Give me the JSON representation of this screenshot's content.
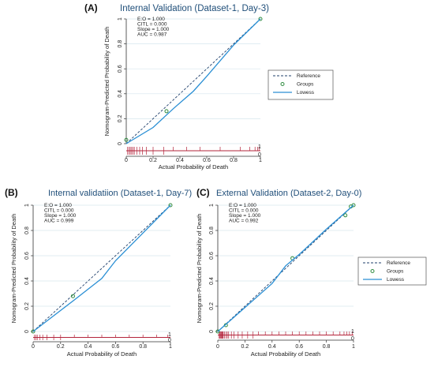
{
  "chart_data": [
    {
      "type": "line",
      "panel_label": "(A)",
      "title": "Internal Validation (Dataset-1, Day-3)",
      "xlabel": "Actual Probability of Death",
      "ylabel": "Nomogram-Predicted Probability of Death",
      "xlim": [
        0,
        1
      ],
      "ylim": [
        0,
        1
      ],
      "x_ticks": [
        "0",
        "0.2",
        "0.4",
        "0.6",
        "0.8",
        "1"
      ],
      "y_ticks": [
        "0",
        "0.2",
        "0.4",
        "0.6",
        "0.8",
        "1"
      ],
      "stats": [
        "E:O = 1.000",
        "CITL = 0.000",
        "Slope = 1.000",
        "AUC = 0.987"
      ],
      "legend": {
        "position": "right",
        "entries": [
          "Reference",
          "Groups",
          "Lowess"
        ]
      },
      "series": [
        {
          "name": "Reference",
          "style": "dashed",
          "points": [
            [
              0,
              0
            ],
            [
              1,
              1
            ]
          ]
        },
        {
          "name": "Groups",
          "style": "markers",
          "points": [
            [
              0,
              0.03
            ],
            [
              0.3,
              0.26
            ],
            [
              1,
              1
            ]
          ]
        },
        {
          "name": "Lowess",
          "style": "solid",
          "points": [
            [
              0,
              0
            ],
            [
              0.2,
              0.13
            ],
            [
              0.35,
              0.28
            ],
            [
              0.5,
              0.42
            ],
            [
              0.6,
              0.54
            ],
            [
              0.8,
              0.79
            ],
            [
              1,
              1
            ]
          ]
        }
      ],
      "rug_ticks": [
        0.01,
        0.02,
        0.03,
        0.04,
        0.05,
        0.06,
        0.08,
        0.1,
        0.12,
        0.15,
        0.2,
        0.28,
        0.35,
        0.45,
        0.55,
        0.7,
        0.85,
        0.92,
        0.96,
        0.98,
        0.99
      ],
      "rug_zero_label": "0",
      "rug_one_label": "1"
    },
    {
      "type": "line",
      "panel_label": "(B)",
      "title": "Internal validatiion (Dataset-1, Day-7)",
      "xlabel": "Actual Probability of Death",
      "ylabel": "Nomogram-Predicted Probability of Death",
      "xlim": [
        0,
        1
      ],
      "ylim": [
        0,
        1
      ],
      "x_ticks": [
        "0",
        "0.2",
        "0.4",
        "0.6",
        "0.8",
        "1"
      ],
      "y_ticks": [
        "0",
        "0.2",
        "0.4",
        "0.6",
        "0.8",
        "1"
      ],
      "stats": [
        "E:O = 1.000",
        "CITL = 0.000",
        "Slope = 1.000",
        "AUC = 0.999"
      ],
      "legend": null,
      "series": [
        {
          "name": "Reference",
          "style": "dashed",
          "points": [
            [
              0,
              0
            ],
            [
              1,
              1
            ]
          ]
        },
        {
          "name": "Groups",
          "style": "markers",
          "points": [
            [
              0,
              0
            ],
            [
              0.29,
              0.28
            ],
            [
              1,
              1
            ]
          ]
        },
        {
          "name": "Lowess",
          "style": "solid",
          "points": [
            [
              0,
              0
            ],
            [
              0.3,
              0.25
            ],
            [
              0.5,
              0.42
            ],
            [
              0.6,
              0.56
            ],
            [
              0.8,
              0.78
            ],
            [
              1,
              1
            ]
          ]
        }
      ],
      "rug_ticks": [
        0.01,
        0.02,
        0.03,
        0.05,
        0.07,
        0.1,
        0.15,
        0.2,
        0.3,
        0.4,
        0.5,
        0.6,
        0.7,
        0.8,
        0.9,
        0.98
      ],
      "rug_zero_label": "0",
      "rug_one_label": "1"
    },
    {
      "type": "line",
      "panel_label": "(C)",
      "title": "External Validation (Dataset-2, Day-0)",
      "xlabel": "Actual Probability of Death",
      "ylabel": "Nomogram-Predicted Probability of Death",
      "xlim": [
        0,
        1
      ],
      "ylim": [
        0,
        1
      ],
      "x_ticks": [
        "0",
        "0.2",
        "0.4",
        "0.6",
        "0.8",
        "1"
      ],
      "y_ticks": [
        "0",
        "0.2",
        "0.4",
        "0.6",
        "0.8",
        "1"
      ],
      "stats": [
        "E:O = 1.000",
        "CITL = 0.000",
        "Slope = 1.000",
        "AUC = 0.992"
      ],
      "legend": {
        "position": "right",
        "entries": [
          "Reference",
          "Groups",
          "Lowess"
        ]
      },
      "series": [
        {
          "name": "Reference",
          "style": "dashed",
          "points": [
            [
              0,
              0
            ],
            [
              1,
              1
            ]
          ]
        },
        {
          "name": "Groups",
          "style": "markers",
          "points": [
            [
              0,
              0
            ],
            [
              0.06,
              0.05
            ],
            [
              0.55,
              0.58
            ],
            [
              0.94,
              0.92
            ],
            [
              0.98,
              0.99
            ],
            [
              1,
              1
            ]
          ]
        },
        {
          "name": "Lowess",
          "style": "solid",
          "points": [
            [
              0,
              0
            ],
            [
              0.2,
              0.19
            ],
            [
              0.4,
              0.38
            ],
            [
              0.5,
              0.52
            ],
            [
              0.6,
              0.61
            ],
            [
              0.8,
              0.81
            ],
            [
              1,
              1
            ]
          ]
        }
      ],
      "rug_ticks": [
        0.01,
        0.015,
        0.02,
        0.025,
        0.03,
        0.035,
        0.04,
        0.05,
        0.06,
        0.07,
        0.08,
        0.1,
        0.12,
        0.15,
        0.18,
        0.22,
        0.26,
        0.3,
        0.35,
        0.4,
        0.45,
        0.5,
        0.55,
        0.6,
        0.65,
        0.7,
        0.75,
        0.8,
        0.85,
        0.9,
        0.93,
        0.95,
        0.97,
        0.99
      ],
      "rug_zero_label": "0",
      "rug_one_label": "1"
    }
  ],
  "colors": {
    "title": "#1f4e79",
    "reference": "#1f3f6b",
    "groups": "#2e8b3e",
    "lowess": "#2a8fd4",
    "rug": "#b3243b",
    "grid": "#d6e6ee"
  }
}
